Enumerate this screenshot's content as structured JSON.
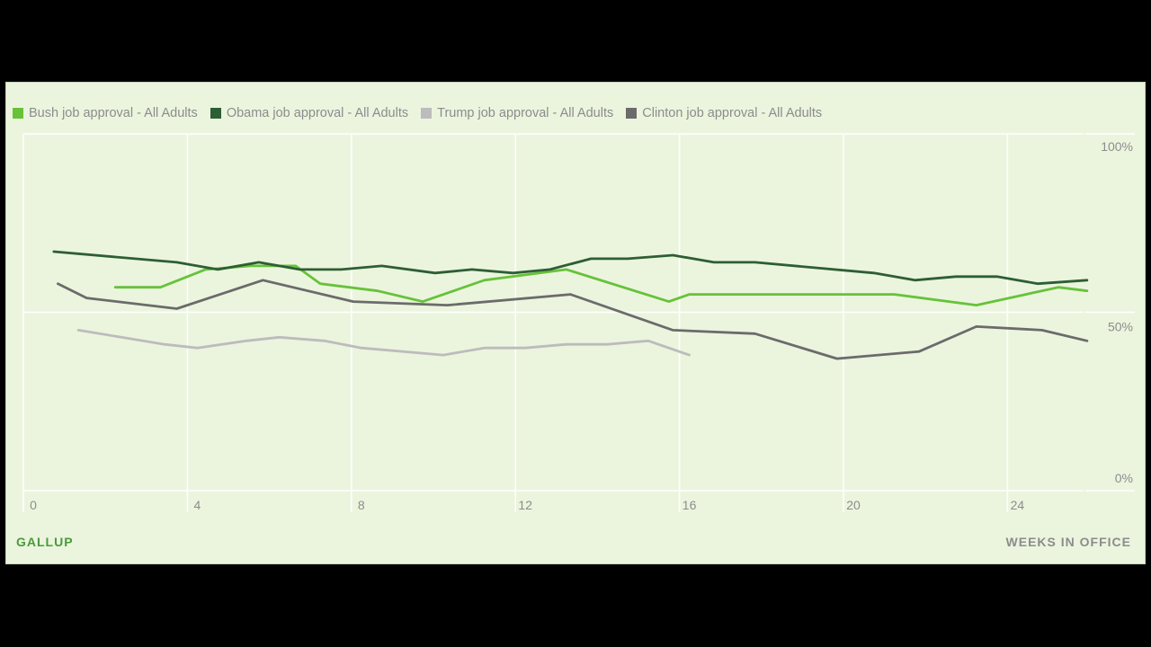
{
  "colors": {
    "background": "#ebf5de",
    "grid": "#ffffff",
    "bush": "#67c23a",
    "obama": "#2e5e34",
    "trump": "#bcbcbc",
    "clinton": "#6b6b6b"
  },
  "footer": {
    "brand": "GALLUP",
    "xaxis_title": "WEEKS IN OFFICE"
  },
  "chart_data": {
    "type": "line",
    "title": "",
    "xlabel": "WEEKS IN OFFICE",
    "ylabel": "",
    "xlim": [
      0,
      25.7
    ],
    "ylim": [
      0,
      100
    ],
    "x_ticks": [
      0,
      4,
      8,
      12,
      16,
      20,
      24
    ],
    "y_ticks": [
      {
        "value": 100,
        "label": "100%"
      },
      {
        "value": 50,
        "label": "50%"
      },
      {
        "value": 0,
        "label": "0%"
      }
    ],
    "grid": true,
    "legend_position": "top-left",
    "series": [
      {
        "name": "Bush job approval - All Adults",
        "color_key": "bush",
        "points": [
          [
            2,
            57
          ],
          [
            3.1,
            57
          ],
          [
            4.2,
            62
          ],
          [
            5.3,
            63
          ],
          [
            6.4,
            63
          ],
          [
            7,
            58
          ],
          [
            8.4,
            56
          ],
          [
            9.5,
            53
          ],
          [
            11,
            59
          ],
          [
            13,
            62
          ],
          [
            15.5,
            53
          ],
          [
            16,
            55
          ],
          [
            18.5,
            55
          ],
          [
            21,
            55
          ],
          [
            23,
            52
          ],
          [
            25,
            57
          ],
          [
            25.7,
            56
          ]
        ]
      },
      {
        "name": "Obama job approval - All Adults",
        "color_key": "obama",
        "points": [
          [
            0.5,
            67
          ],
          [
            3.5,
            64
          ],
          [
            4.5,
            62
          ],
          [
            5.5,
            64
          ],
          [
            6.5,
            62
          ],
          [
            7.5,
            62
          ],
          [
            8.5,
            63
          ],
          [
            9.8,
            61
          ],
          [
            10.7,
            62
          ],
          [
            11.7,
            61
          ],
          [
            12.6,
            62
          ],
          [
            13.6,
            65
          ],
          [
            14.5,
            65
          ],
          [
            15.6,
            66
          ],
          [
            16.6,
            64
          ],
          [
            17.6,
            64
          ],
          [
            20.5,
            61
          ],
          [
            21.5,
            59
          ],
          [
            22.5,
            60
          ],
          [
            23.5,
            60
          ],
          [
            24.5,
            58
          ],
          [
            25.7,
            59
          ]
        ]
      },
      {
        "name": "Trump job approval - All Adults",
        "color_key": "trump",
        "points": [
          [
            1.1,
            45
          ],
          [
            3.2,
            41
          ],
          [
            4,
            40
          ],
          [
            5.2,
            42
          ],
          [
            6,
            43
          ],
          [
            7.1,
            42
          ],
          [
            8,
            40
          ],
          [
            10,
            38
          ],
          [
            11,
            40
          ],
          [
            12,
            40
          ],
          [
            13,
            41
          ],
          [
            14,
            41
          ],
          [
            15,
            42
          ],
          [
            16,
            38
          ]
        ]
      },
      {
        "name": "Clinton job approval - All Adults",
        "color_key": "clinton",
        "points": [
          [
            0.6,
            58
          ],
          [
            1.3,
            54
          ],
          [
            3.5,
            51
          ],
          [
            5.6,
            59
          ],
          [
            7.8,
            53
          ],
          [
            10.1,
            52
          ],
          [
            13.1,
            55
          ],
          [
            15.6,
            45
          ],
          [
            17.6,
            44
          ],
          [
            19.6,
            37
          ],
          [
            21.6,
            39
          ],
          [
            23,
            46
          ],
          [
            24.6,
            45
          ],
          [
            25.7,
            42
          ]
        ]
      }
    ]
  }
}
